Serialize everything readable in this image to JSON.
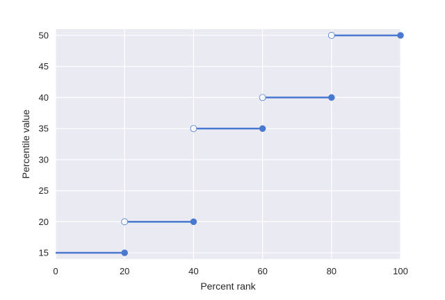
{
  "chart_data": {
    "type": "step",
    "title": "",
    "xlabel": "Percent rank",
    "ylabel": "Percentile value",
    "xlim": [
      0,
      100
    ],
    "ylim": [
      14,
      51
    ],
    "xticks": [
      0,
      20,
      40,
      60,
      80,
      100
    ],
    "yticks": [
      15,
      20,
      25,
      30,
      35,
      40,
      45,
      50
    ],
    "grid": true,
    "colors": {
      "background": "#eaeaf2",
      "grid": "#ffffff",
      "series": "#4878cf"
    },
    "segments": [
      {
        "x_start": 0,
        "x_end": 20,
        "y": 15,
        "open_start": false,
        "closed_end": true
      },
      {
        "x_start": 20,
        "x_end": 40,
        "y": 20,
        "open_start": true,
        "closed_end": true
      },
      {
        "x_start": 40,
        "x_end": 60,
        "y": 35,
        "open_start": true,
        "closed_end": true
      },
      {
        "x_start": 60,
        "x_end": 80,
        "y": 40,
        "open_start": true,
        "closed_end": true
      },
      {
        "x_start": 80,
        "x_end": 100,
        "y": 50,
        "open_start": true,
        "closed_end": true
      }
    ]
  }
}
